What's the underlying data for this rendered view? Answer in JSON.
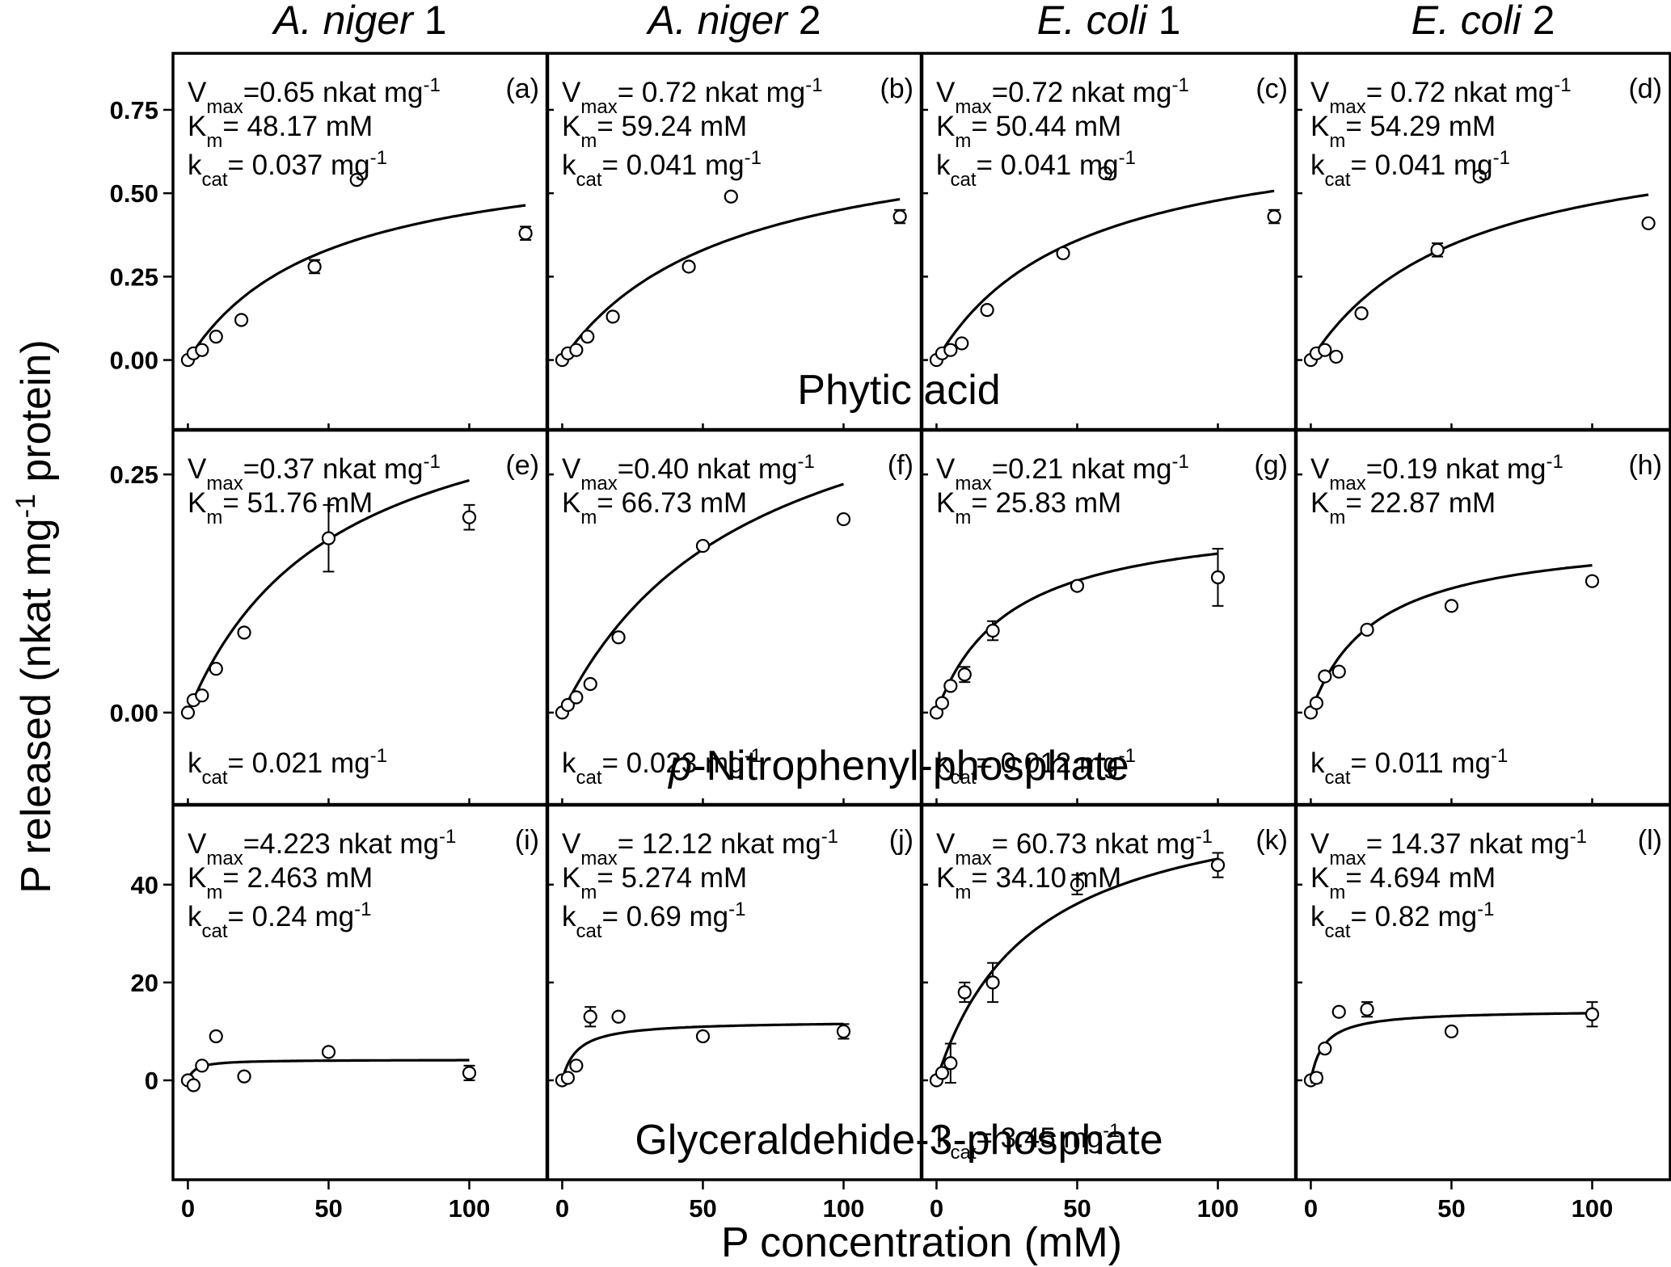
{
  "colors": {
    "background": "#ffffff",
    "ink": "#000000",
    "marker_fill": "#ffffff"
  },
  "chart_data": {
    "type": "scatter",
    "layout": "3 rows x 4 columns grid of scatter plots with fitted Michaelis-Menten curves",
    "xlabel": "P concentration (mM)",
    "ylabel": "P released (nkat mg-1 protein)",
    "ylabel_parts": {
      "pre": "P released (nkat mg",
      "sup": "-1",
      "post": " protein)"
    },
    "xlim": [
      -3,
      126
    ],
    "x_ticks": [
      0,
      50,
      100
    ],
    "columns": [
      {
        "label_italic": "A. niger",
        "label_plain": " 1"
      },
      {
        "label_italic": "A. niger",
        "label_plain": " 2"
      },
      {
        "label_italic": "E. coli",
        "label_plain": " 1"
      },
      {
        "label_italic": "E. coli",
        "label_plain": " 2"
      }
    ],
    "rows": [
      {
        "substrate": "Phytic acid",
        "substrate_label": {
          "italic": "",
          "plain": "Phytic acid"
        },
        "ylim": [
          -0.19,
          0.9
        ],
        "y_ticks": [
          "0.00",
          "0.25",
          "0.50",
          "0.75"
        ],
        "y_tick_values": [
          0,
          0.25,
          0.5,
          0.75
        ]
      },
      {
        "substrate": "p-Nitrophenyl-phosphate",
        "substrate_label": {
          "italic": "p",
          "plain": "-Nitrophenyl-phosphate"
        },
        "ylim": [
          -0.09,
          0.29
        ],
        "y_ticks": [
          "0.00",
          "0.25"
        ],
        "y_tick_values": [
          0,
          0.25
        ]
      },
      {
        "substrate": "Glyceraldehide-3-phosphate",
        "substrate_label": {
          "italic": "",
          "plain": "Glyceraldehide-3-phosphate"
        },
        "ylim": [
          -19,
          55
        ],
        "y_ticks": [
          "0",
          "20",
          "40"
        ],
        "y_tick_values": [
          0,
          20,
          40
        ]
      }
    ],
    "units": {
      "vmax": "nkat mg",
      "vmax_exp": "-1",
      "km": "mM",
      "kcat": "mg",
      "kcat_exp": "-1"
    },
    "panels": [
      {
        "label": "(a)",
        "row": 0,
        "col": 0,
        "Vmax": "0.65",
        "Vmax_sep": "=",
        "Km": "48.17",
        "kcat": "0.037",
        "kcat_pos": "top",
        "fit": {
          "vmax": 0.65,
          "km": 48.17,
          "x_end": 120
        },
        "points": [
          {
            "x": 0,
            "y": 0
          },
          {
            "x": 2,
            "y": 0.02
          },
          {
            "x": 5,
            "y": 0.03
          },
          {
            "x": 10,
            "y": 0.07
          },
          {
            "x": 19,
            "y": 0.12
          },
          {
            "x": 45,
            "y": 0.28,
            "err": 0.02
          },
          {
            "x": 60,
            "y": 0.54
          },
          {
            "x": 120,
            "y": 0.38,
            "err": 0.02
          }
        ]
      },
      {
        "label": "(b)",
        "row": 0,
        "col": 1,
        "Vmax": "0.72",
        "Vmax_sep": "= ",
        "Km": "59.24",
        "kcat": "0.041",
        "kcat_pos": "top",
        "fit": {
          "vmax": 0.72,
          "km": 59.24,
          "x_end": 120
        },
        "points": [
          {
            "x": 0,
            "y": 0
          },
          {
            "x": 2,
            "y": 0.02
          },
          {
            "x": 5,
            "y": 0.03
          },
          {
            "x": 9,
            "y": 0.07
          },
          {
            "x": 18,
            "y": 0.13
          },
          {
            "x": 45,
            "y": 0.28
          },
          {
            "x": 60,
            "y": 0.49
          },
          {
            "x": 120,
            "y": 0.43,
            "err": 0.02
          }
        ]
      },
      {
        "label": "(c)",
        "row": 0,
        "col": 2,
        "Vmax": "0.72",
        "Vmax_sep": "=",
        "Km": "50.44",
        "kcat": "0.041",
        "kcat_pos": "top",
        "fit": {
          "vmax": 0.72,
          "km": 50.44,
          "x_end": 120
        },
        "points": [
          {
            "x": 0,
            "y": 0
          },
          {
            "x": 2,
            "y": 0.02
          },
          {
            "x": 5,
            "y": 0.03
          },
          {
            "x": 9,
            "y": 0.05
          },
          {
            "x": 18,
            "y": 0.15
          },
          {
            "x": 45,
            "y": 0.32
          },
          {
            "x": 60,
            "y": 0.56,
            "err": 0.01
          },
          {
            "x": 120,
            "y": 0.43,
            "err": 0.02
          }
        ]
      },
      {
        "label": "(d)",
        "row": 0,
        "col": 3,
        "Vmax": "0.72",
        "Vmax_sep": "= ",
        "Km": "54.29",
        "kcat": "0.041",
        "kcat_pos": "top",
        "fit": {
          "vmax": 0.72,
          "km": 54.29,
          "x_end": 120
        },
        "points": [
          {
            "x": 0,
            "y": 0
          },
          {
            "x": 2,
            "y": 0.02
          },
          {
            "x": 5,
            "y": 0.03
          },
          {
            "x": 9,
            "y": 0.01
          },
          {
            "x": 18,
            "y": 0.14
          },
          {
            "x": 45,
            "y": 0.33,
            "err": 0.02
          },
          {
            "x": 60,
            "y": 0.55
          },
          {
            "x": 120,
            "y": 0.41
          }
        ]
      },
      {
        "label": "(e)",
        "row": 1,
        "col": 0,
        "Vmax": "0.37",
        "Vmax_sep": "=",
        "Km": "51.76",
        "kcat": "0.021",
        "kcat_pos": "bottom",
        "fit": {
          "vmax": 0.37,
          "km": 51.76,
          "x_end": 100
        },
        "points": [
          {
            "x": 0,
            "y": 0
          },
          {
            "x": 2,
            "y": 0.013
          },
          {
            "x": 5,
            "y": 0.018
          },
          {
            "x": 10,
            "y": 0.046
          },
          {
            "x": 20,
            "y": 0.084
          },
          {
            "x": 50,
            "y": 0.183,
            "err": 0.035
          },
          {
            "x": 100,
            "y": 0.205,
            "err": 0.013
          }
        ]
      },
      {
        "label": "(f)",
        "row": 1,
        "col": 1,
        "Vmax": "0.40",
        "Vmax_sep": "=",
        "Km": "66.73",
        "kcat": "0.023",
        "kcat_pos": "bottom",
        "fit": {
          "vmax": 0.4,
          "km": 66.73,
          "x_end": 100
        },
        "points": [
          {
            "x": 0,
            "y": 0
          },
          {
            "x": 2,
            "y": 0.008
          },
          {
            "x": 5,
            "y": 0.016
          },
          {
            "x": 10,
            "y": 0.03
          },
          {
            "x": 20,
            "y": 0.079
          },
          {
            "x": 50,
            "y": 0.175
          },
          {
            "x": 100,
            "y": 0.203
          }
        ]
      },
      {
        "label": "(g)",
        "row": 1,
        "col": 2,
        "Vmax": "0.21",
        "Vmax_sep": "=",
        "Km": "25.83",
        "kcat": "0.012",
        "kcat_pos": "bottom",
        "fit": {
          "vmax": 0.21,
          "km": 25.83,
          "x_end": 100
        },
        "points": [
          {
            "x": 0,
            "y": 0
          },
          {
            "x": 2,
            "y": 0.01
          },
          {
            "x": 5,
            "y": 0.028
          },
          {
            "x": 10,
            "y": 0.04,
            "err": 0.008
          },
          {
            "x": 20,
            "y": 0.086,
            "err": 0.01
          },
          {
            "x": 50,
            "y": 0.133,
            "err": 0.004
          },
          {
            "x": 100,
            "y": 0.142,
            "err": 0.03
          }
        ]
      },
      {
        "label": "(h)",
        "row": 1,
        "col": 3,
        "Vmax": "0.19",
        "Vmax_sep": "=",
        "Km": "22.87",
        "kcat": "0.011",
        "kcat_pos": "bottom",
        "fit": {
          "vmax": 0.19,
          "km": 22.87,
          "x_end": 100
        },
        "points": [
          {
            "x": 0,
            "y": 0
          },
          {
            "x": 2,
            "y": 0.01
          },
          {
            "x": 5,
            "y": 0.038
          },
          {
            "x": 10,
            "y": 0.043
          },
          {
            "x": 20,
            "y": 0.087
          },
          {
            "x": 50,
            "y": 0.112
          },
          {
            "x": 100,
            "y": 0.138,
            "err": 0.004
          }
        ]
      },
      {
        "label": "(i)",
        "row": 2,
        "col": 0,
        "Vmax": "4.223",
        "Vmax_sep": "=",
        "Km": "2.463",
        "kcat": "0.24",
        "kcat_pos": "top",
        "fit": {
          "vmax": 4.223,
          "km": 2.463,
          "x_end": 100
        },
        "points": [
          {
            "x": 0,
            "y": 0
          },
          {
            "x": 2,
            "y": -1
          },
          {
            "x": 5,
            "y": 3
          },
          {
            "x": 10,
            "y": 9
          },
          {
            "x": 20,
            "y": 0.8
          },
          {
            "x": 50,
            "y": 5.8
          },
          {
            "x": 100,
            "y": 1.5,
            "err": 1.5
          }
        ]
      },
      {
        "label": "(j)",
        "row": 2,
        "col": 1,
        "Vmax": "12.12",
        "Vmax_sep": "= ",
        "Km": "5.274",
        "kcat": "0.69",
        "kcat_pos": "top",
        "fit": {
          "vmax": 12.12,
          "km": 5.274,
          "x_end": 100
        },
        "points": [
          {
            "x": 0,
            "y": 0
          },
          {
            "x": 2,
            "y": 0.5
          },
          {
            "x": 5,
            "y": 3
          },
          {
            "x": 10,
            "y": 13,
            "err": 2
          },
          {
            "x": 20,
            "y": 13
          },
          {
            "x": 50,
            "y": 9
          },
          {
            "x": 100,
            "y": 10,
            "err": 1.5
          }
        ]
      },
      {
        "label": "(k)",
        "row": 2,
        "col": 2,
        "Vmax": "60.73",
        "Vmax_sep": "= ",
        "Km": "34.10",
        "kcat": "3.45",
        "kcat_pos": "bottom",
        "fit": {
          "vmax": 60.73,
          "km": 34.1,
          "x_end": 100
        },
        "points": [
          {
            "x": 0,
            "y": 0
          },
          {
            "x": 2,
            "y": 1.5
          },
          {
            "x": 5,
            "y": 3.5,
            "err": 4
          },
          {
            "x": 10,
            "y": 18,
            "err": 2
          },
          {
            "x": 20,
            "y": 20,
            "err": 4
          },
          {
            "x": 50,
            "y": 40,
            "err": 2
          },
          {
            "x": 100,
            "y": 44,
            "err": 2.5
          }
        ]
      },
      {
        "label": "(l)",
        "row": 2,
        "col": 3,
        "Vmax": "14.37",
        "Vmax_sep": "= ",
        "Km": "4.694",
        "kcat": "0.82",
        "kcat_pos": "top",
        "fit": {
          "vmax": 14.37,
          "km": 4.694,
          "x_end": 100
        },
        "points": [
          {
            "x": 0,
            "y": 0
          },
          {
            "x": 2,
            "y": 0.5,
            "err": 1
          },
          {
            "x": 5,
            "y": 6.5
          },
          {
            "x": 10,
            "y": 14
          },
          {
            "x": 20,
            "y": 14.5,
            "err": 1.5
          },
          {
            "x": 50,
            "y": 10
          },
          {
            "x": 100,
            "y": 13.5,
            "err": 2.5
          }
        ]
      }
    ]
  }
}
